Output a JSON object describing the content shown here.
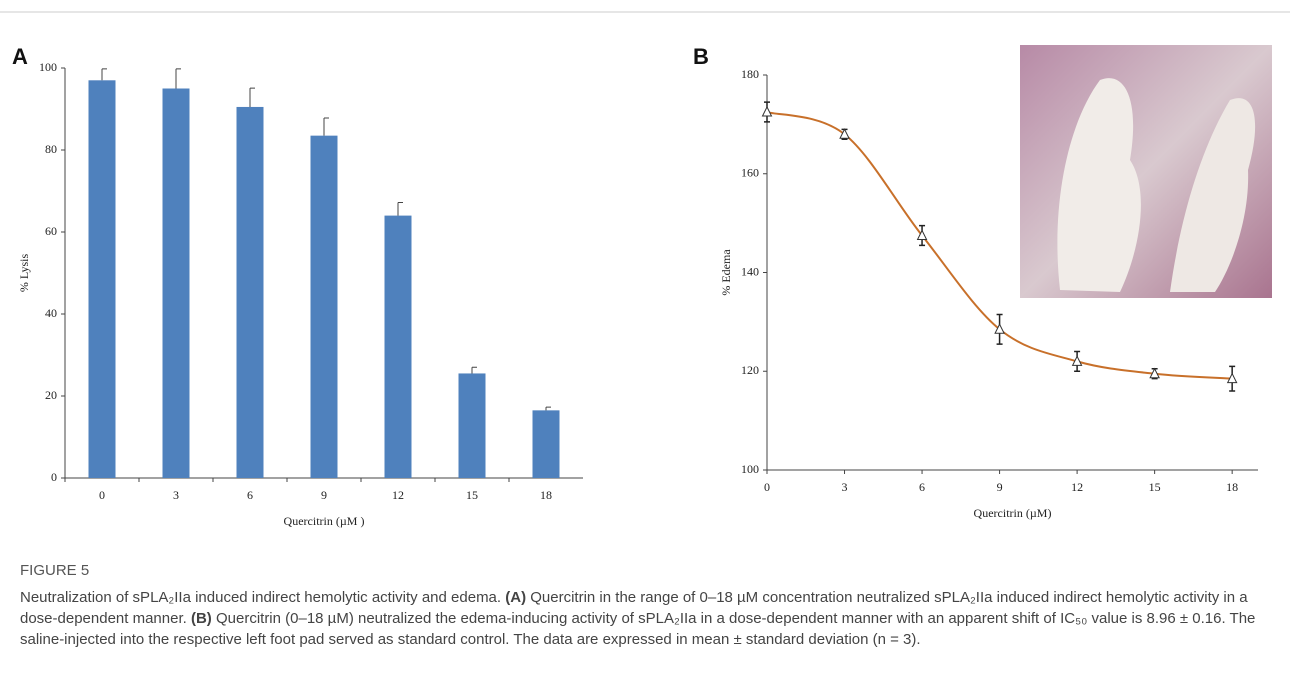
{
  "chart_data": [
    {
      "type": "bar",
      "panel": "A",
      "ylabel": "% Lysis",
      "xlabel": "Quercitrin (µM )",
      "categories": [
        "0",
        "3",
        "6",
        "9",
        "12",
        "15",
        "18"
      ],
      "values": [
        97,
        95,
        90.5,
        83.5,
        64,
        25.5,
        16.5
      ],
      "errors": [
        2.8,
        4.8,
        4.6,
        4.3,
        3.2,
        1.5,
        0.8
      ],
      "color": "#4f81bd",
      "ylim": [
        0,
        100
      ],
      "yticks": [
        0,
        20,
        40,
        60,
        80,
        100
      ]
    },
    {
      "type": "line",
      "panel": "B",
      "ylabel": "% Edema",
      "xlabel": "Quercitrin (µM)",
      "x": [
        0,
        3,
        6,
        9,
        12,
        15,
        18
      ],
      "values": [
        172.5,
        168,
        147.5,
        128.5,
        122,
        119.5,
        118.5
      ],
      "errors": [
        2,
        1,
        2,
        3,
        2,
        1,
        2.5
      ],
      "color": "#c8702a",
      "xlim": [
        0,
        19
      ],
      "xticks": [
        0,
        3,
        6,
        9,
        12,
        15,
        18
      ],
      "ylim": [
        100,
        180
      ],
      "yticks": [
        100,
        120,
        140,
        160,
        180
      ]
    }
  ],
  "caption": {
    "label": "FIGURE 5",
    "title": "Neutralization of sPLA₂IIa induced indirect hemolytic activity and edema.",
    "a_label": "(A)",
    "a_text": "Quercitrin in the range of 0–18 µM concentration neutralized sPLA₂IIa induced indirect hemolytic activity in a dose-dependent manner.",
    "b_label": "(B)",
    "b_text": "Quercitrin (0–18 µM) neutralized the edema-inducing activity of sPLA₂IIa in a dose-dependent manner with an apparent shift of IC₅₀ value is 8.96 ± 0.16. The saline-injected into the respective left foot pad served as standard control. The data are expressed in mean ± standard deviation (n = 3)."
  }
}
